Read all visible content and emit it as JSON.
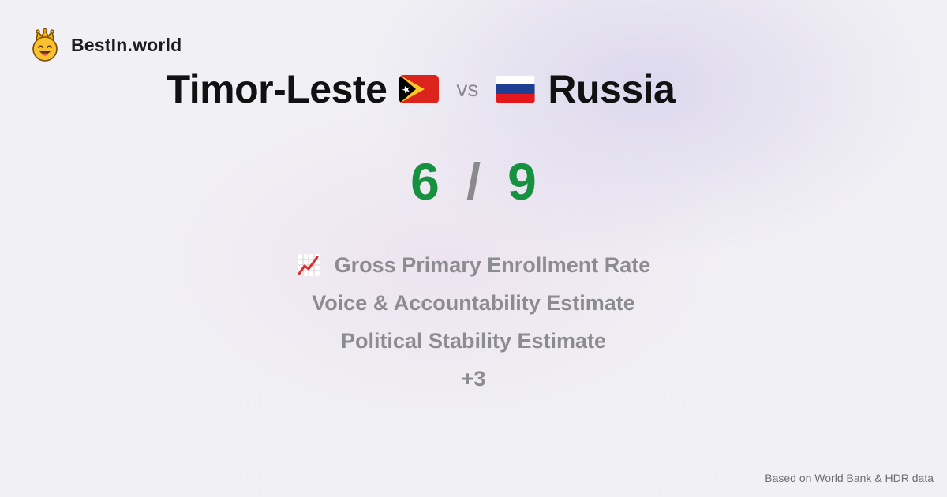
{
  "brand": {
    "name": "BestIn.world",
    "logo_icon": "crowned-smiley-icon"
  },
  "comparison": {
    "left_country": "Timor-Leste",
    "left_flag_icon": "flag-timor-leste-icon",
    "vs_label": "vs",
    "right_country": "Russia",
    "right_flag_icon": "flag-russia-icon"
  },
  "score": {
    "left": "6",
    "separator": "/",
    "right": "9",
    "color": "#15913f"
  },
  "metrics": [
    {
      "label": "Gross Primary Enrollment Rate",
      "icon": "chart-increasing-icon"
    },
    {
      "label": "Voice & Accountability Estimate"
    },
    {
      "label": "Political Stability Estimate"
    },
    {
      "label": "+3"
    }
  ],
  "footnote": "Based on World Bank & HDR data"
}
